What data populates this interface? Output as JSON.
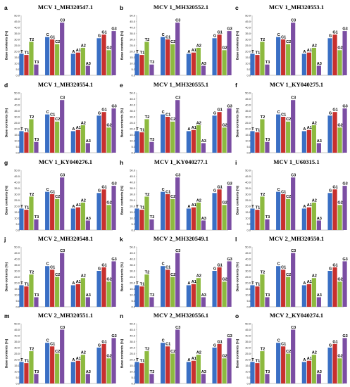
{
  "colors": {
    "T": "#3a6fc4",
    "T1": "#c8302e",
    "T2": "#8dba3f",
    "T3": "#7b4ea3"
  },
  "chart_data": [
    {
      "type": "bar",
      "panel_letter": "a",
      "title": "MCV 1_MH320547.1",
      "ylabel": "Base contents (%)",
      "ylim": [
        0,
        50
      ],
      "tick_labels": [
        "0.0",
        "5.0",
        "10.0",
        "15.0",
        "20.0",
        "25.0",
        "30.0",
        "35.0",
        "40.0",
        "45.0",
        "50.0"
      ],
      "categories": [
        "T",
        "C",
        "A",
        "G"
      ],
      "bar_labels": [
        [
          "T",
          "T1",
          "T2",
          "T3"
        ],
        [
          "C",
          "C1",
          "C2",
          "C3"
        ],
        [
          "A",
          "A1",
          "A2",
          "A3"
        ],
        [
          "G",
          "G1",
          "G2",
          "G3"
        ]
      ],
      "series": [
        {
          "values": [
            18,
            32,
            18,
            31
          ]
        },
        {
          "values": [
            17,
            30,
            19,
            34
          ]
        },
        {
          "values": [
            28,
            26,
            23,
            21
          ]
        },
        {
          "values": [
            9,
            44,
            8,
            37
          ]
        }
      ]
    },
    {
      "type": "bar",
      "panel_letter": "b",
      "title": "MCV 1_MH320552.1",
      "ylabel": "Base contents (%)",
      "ylim": [
        0,
        50
      ],
      "tick_labels": [
        "0.0",
        "5.0",
        "10.0",
        "15.0",
        "20.0",
        "25.0",
        "30.0",
        "35.0",
        "40.0",
        "45.0",
        "50.0"
      ],
      "categories": [
        "T",
        "C",
        "A",
        "G"
      ],
      "bar_labels": [
        [
          "T",
          "T1",
          "T2",
          "T3"
        ],
        [
          "C",
          "C1",
          "C2",
          "C3"
        ],
        [
          "A",
          "A1",
          "A2",
          "A3"
        ],
        [
          "G",
          "G1",
          "G2",
          "G3"
        ]
      ],
      "series": [
        {
          "values": [
            18,
            32,
            18,
            31
          ]
        },
        {
          "values": [
            17,
            30,
            19,
            34
          ]
        },
        {
          "values": [
            28,
            26,
            23,
            21
          ]
        },
        {
          "values": [
            9,
            44,
            8,
            37
          ]
        }
      ]
    },
    {
      "type": "bar",
      "panel_letter": "c",
      "title": "MCV 1_MH320553.1",
      "ylabel": "Base contents (%)",
      "ylim": [
        0,
        50
      ],
      "tick_labels": [
        "0.0",
        "5.0",
        "10.0",
        "15.0",
        "20.0",
        "25.0",
        "30.0",
        "35.0",
        "40.0",
        "45.0",
        "50.0"
      ],
      "categories": [
        "T",
        "C",
        "A",
        "G"
      ],
      "bar_labels": [
        [
          "T",
          "T1",
          "T2",
          "T3"
        ],
        [
          "C",
          "C1",
          "C2",
          "C3"
        ],
        [
          "A",
          "A1",
          "A2",
          "A3"
        ],
        [
          "G",
          "G1",
          "G2",
          "G3"
        ]
      ],
      "series": [
        {
          "values": [
            18,
            32,
            18,
            31
          ]
        },
        {
          "values": [
            17,
            30,
            19,
            34
          ]
        },
        {
          "values": [
            28,
            26,
            23,
            21
          ]
        },
        {
          "values": [
            9,
            44,
            8,
            37
          ]
        }
      ]
    },
    {
      "type": "bar",
      "panel_letter": "d",
      "title": "MCV 1_MH320554.1",
      "ylabel": "Base contents (%)",
      "ylim": [
        0,
        50
      ],
      "tick_labels": [
        "0.0",
        "5.0",
        "10.0",
        "15.0",
        "20.0",
        "25.0",
        "30.0",
        "35.0",
        "40.0",
        "45.0",
        "50.0"
      ],
      "categories": [
        "T",
        "C",
        "A",
        "G"
      ],
      "bar_labels": [
        [
          "T",
          "T1",
          "T2",
          "T3"
        ],
        [
          "C",
          "C1",
          "C2",
          "C3"
        ],
        [
          "A",
          "A1",
          "A2",
          "A3"
        ],
        [
          "G",
          "G1",
          "G2",
          "G3"
        ]
      ],
      "series": [
        {
          "values": [
            18,
            32,
            18,
            31
          ]
        },
        {
          "values": [
            17,
            30,
            19,
            34
          ]
        },
        {
          "values": [
            28,
            26,
            23,
            21
          ]
        },
        {
          "values": [
            9,
            44,
            8,
            37
          ]
        }
      ]
    },
    {
      "type": "bar",
      "panel_letter": "e",
      "title": "MCV 1_MH320555.1",
      "ylabel": "Base contents (%)",
      "ylim": [
        0,
        50
      ],
      "tick_labels": [
        "0.0",
        "5.0",
        "10.0",
        "15.0",
        "20.0",
        "25.0",
        "30.0",
        "35.0",
        "40.0",
        "45.0",
        "50.0"
      ],
      "categories": [
        "T",
        "C",
        "A",
        "G"
      ],
      "bar_labels": [
        [
          "T",
          "T1",
          "T2",
          "T3"
        ],
        [
          "C",
          "C1",
          "C2",
          "C3"
        ],
        [
          "A",
          "A1",
          "A2",
          "A3"
        ],
        [
          "G",
          "G1",
          "G2",
          "G3"
        ]
      ],
      "series": [
        {
          "values": [
            18,
            32,
            18,
            31
          ]
        },
        {
          "values": [
            17,
            30,
            19,
            34
          ]
        },
        {
          "values": [
            28,
            26,
            23,
            21
          ]
        },
        {
          "values": [
            9,
            44,
            8,
            37
          ]
        }
      ]
    },
    {
      "type": "bar",
      "panel_letter": "f",
      "title": "MCV 1_KY040275.1",
      "ylabel": "Base contents (%)",
      "ylim": [
        0,
        50
      ],
      "tick_labels": [
        "0.0",
        "5.0",
        "10.0",
        "15.0",
        "20.0",
        "25.0",
        "30.0",
        "35.0",
        "40.0",
        "45.0",
        "50.0"
      ],
      "categories": [
        "T",
        "C",
        "A",
        "G"
      ],
      "bar_labels": [
        [
          "T",
          "T1",
          "T2",
          "T3"
        ],
        [
          "C",
          "C1",
          "C2",
          "C3"
        ],
        [
          "A",
          "A1",
          "A2",
          "A3"
        ],
        [
          "G",
          "G1",
          "G2",
          "G3"
        ]
      ],
      "series": [
        {
          "values": [
            18,
            32,
            18,
            31
          ]
        },
        {
          "values": [
            17,
            30,
            19,
            34
          ]
        },
        {
          "values": [
            28,
            26,
            23,
            21
          ]
        },
        {
          "values": [
            9,
            44,
            8,
            37
          ]
        }
      ]
    },
    {
      "type": "bar",
      "panel_letter": "g",
      "title": "MCV 1_KY040276.1",
      "ylabel": "Base contents (%)",
      "ylim": [
        0,
        50
      ],
      "tick_labels": [
        "0.0",
        "5.0",
        "10.0",
        "15.0",
        "20.0",
        "25.0",
        "30.0",
        "35.0",
        "40.0",
        "45.0",
        "50.0"
      ],
      "categories": [
        "T",
        "C",
        "A",
        "G"
      ],
      "bar_labels": [
        [
          "T",
          "T1",
          "T2",
          "T3"
        ],
        [
          "C",
          "C1",
          "C2",
          "C3"
        ],
        [
          "A",
          "A1",
          "A2",
          "A3"
        ],
        [
          "G",
          "G1",
          "G2",
          "G3"
        ]
      ],
      "series": [
        {
          "values": [
            18,
            32,
            18,
            31
          ]
        },
        {
          "values": [
            17,
            30,
            19,
            34
          ]
        },
        {
          "values": [
            28,
            26,
            23,
            21
          ]
        },
        {
          "values": [
            9,
            44,
            8,
            37
          ]
        }
      ]
    },
    {
      "type": "bar",
      "panel_letter": "h",
      "title": "MCV 1_KY040277.1",
      "ylabel": "Base contents (%)",
      "ylim": [
        0,
        50
      ],
      "tick_labels": [
        "0.0",
        "5.0",
        "10.0",
        "15.0",
        "20.0",
        "25.0",
        "30.0",
        "35.0",
        "40.0",
        "45.0",
        "50.0"
      ],
      "categories": [
        "T",
        "C",
        "A",
        "G"
      ],
      "bar_labels": [
        [
          "T",
          "T1",
          "T2",
          "T3"
        ],
        [
          "C",
          "C1",
          "C2",
          "C3"
        ],
        [
          "A",
          "A1",
          "A2",
          "A3"
        ],
        [
          "G",
          "G1",
          "G2",
          "G3"
        ]
      ],
      "series": [
        {
          "values": [
            18,
            32,
            18,
            31
          ]
        },
        {
          "values": [
            17,
            30,
            19,
            34
          ]
        },
        {
          "values": [
            28,
            26,
            23,
            21
          ]
        },
        {
          "values": [
            9,
            44,
            8,
            37
          ]
        }
      ]
    },
    {
      "type": "bar",
      "panel_letter": "i",
      "title": "MCV 1_U60315.1",
      "ylabel": "Base contents (%)",
      "ylim": [
        0,
        50
      ],
      "tick_labels": [
        "0.0",
        "5.0",
        "10.0",
        "15.0",
        "20.0",
        "25.0",
        "30.0",
        "35.0",
        "40.0",
        "45.0",
        "50.0"
      ],
      "categories": [
        "T",
        "C",
        "A",
        "G"
      ],
      "bar_labels": [
        [
          "T",
          "T1",
          "T2",
          "T3"
        ],
        [
          "C",
          "C1",
          "C2",
          "C3"
        ],
        [
          "A",
          "A1",
          "A2",
          "A3"
        ],
        [
          "G",
          "G1",
          "G2",
          "G3"
        ]
      ],
      "series": [
        {
          "values": [
            18,
            32,
            18,
            31
          ]
        },
        {
          "values": [
            17,
            30,
            19,
            34
          ]
        },
        {
          "values": [
            28,
            26,
            23,
            21
          ]
        },
        {
          "values": [
            9,
            44,
            8,
            37
          ]
        }
      ]
    },
    {
      "type": "bar",
      "panel_letter": "j",
      "title": "MCV 2_MH320548.1",
      "ylabel": "Base contents (%)",
      "ylim": [
        0,
        50
      ],
      "tick_labels": [
        "0.0",
        "5.0",
        "10.0",
        "15.0",
        "20.0",
        "25.0",
        "30.0",
        "35.0",
        "40.0",
        "45.0",
        "50.0"
      ],
      "categories": [
        "T",
        "C",
        "A",
        "G"
      ],
      "bar_labels": [
        [
          "T",
          "T1",
          "T2",
          "T3"
        ],
        [
          "C",
          "C1",
          "C2",
          "C3"
        ],
        [
          "A",
          "A1",
          "A2",
          "A3"
        ],
        [
          "G",
          "G1",
          "G2",
          "G3"
        ]
      ],
      "series": [
        {
          "values": [
            18,
            34,
            18,
            30
          ]
        },
        {
          "values": [
            17,
            31,
            19,
            33
          ]
        },
        {
          "values": [
            27,
            25,
            24,
            21
          ]
        },
        {
          "values": [
            8,
            45,
            8,
            38
          ]
        }
      ]
    },
    {
      "type": "bar",
      "panel_letter": "k",
      "title": "MCV 2_MH320549.1",
      "ylabel": "Base contents (%)",
      "ylim": [
        0,
        50
      ],
      "tick_labels": [
        "0.0",
        "5.0",
        "10.0",
        "15.0",
        "20.0",
        "25.0",
        "30.0",
        "35.0",
        "40.0",
        "45.0",
        "50.0"
      ],
      "categories": [
        "T",
        "C",
        "A",
        "G"
      ],
      "bar_labels": [
        [
          "T",
          "T1",
          "T2",
          "T3"
        ],
        [
          "C",
          "C1",
          "C2",
          "C3"
        ],
        [
          "A",
          "A1",
          "A2",
          "A3"
        ],
        [
          "G",
          "G1",
          "G2",
          "G3"
        ]
      ],
      "series": [
        {
          "values": [
            18,
            34,
            18,
            30
          ]
        },
        {
          "values": [
            17,
            31,
            19,
            33
          ]
        },
        {
          "values": [
            27,
            25,
            24,
            21
          ]
        },
        {
          "values": [
            8,
            45,
            8,
            38
          ]
        }
      ]
    },
    {
      "type": "bar",
      "panel_letter": "l",
      "title": "MCV 2_MH320550.1",
      "ylabel": "Base contents (%)",
      "ylim": [
        0,
        50
      ],
      "tick_labels": [
        "0.0",
        "5.0",
        "10.0",
        "15.0",
        "20.0",
        "25.0",
        "30.0",
        "35.0",
        "40.0",
        "45.0",
        "50.0"
      ],
      "categories": [
        "T",
        "C",
        "A",
        "G"
      ],
      "bar_labels": [
        [
          "T",
          "T1",
          "T2",
          "T3"
        ],
        [
          "C",
          "C1",
          "C2",
          "C3"
        ],
        [
          "A",
          "A1",
          "A2",
          "A3"
        ],
        [
          "G",
          "G1",
          "G2",
          "G3"
        ]
      ],
      "series": [
        {
          "values": [
            18,
            34,
            18,
            30
          ]
        },
        {
          "values": [
            17,
            31,
            19,
            33
          ]
        },
        {
          "values": [
            27,
            25,
            24,
            21
          ]
        },
        {
          "values": [
            8,
            45,
            8,
            38
          ]
        }
      ]
    },
    {
      "type": "bar",
      "panel_letter": "m",
      "title": "MCV 2_MH320551.1",
      "ylabel": "Base contents (%)",
      "ylim": [
        0,
        50
      ],
      "tick_labels": [
        "0.0",
        "5.0",
        "10.0",
        "15.0",
        "20.0",
        "25.0",
        "30.0",
        "35.0",
        "40.0",
        "45.0",
        "50.0"
      ],
      "categories": [
        "T",
        "C",
        "A",
        "G"
      ],
      "bar_labels": [
        [
          "T",
          "T1",
          "T2",
          "T3"
        ],
        [
          "C",
          "C1",
          "C2",
          "C3"
        ],
        [
          "A",
          "A1",
          "A2",
          "A3"
        ],
        [
          "G",
          "G1",
          "G2",
          "G3"
        ]
      ],
      "series": [
        {
          "values": [
            18,
            34,
            18,
            30
          ]
        },
        {
          "values": [
            17,
            31,
            19,
            33
          ]
        },
        {
          "values": [
            27,
            25,
            24,
            21
          ]
        },
        {
          "values": [
            8,
            45,
            8,
            38
          ]
        }
      ]
    },
    {
      "type": "bar",
      "panel_letter": "n",
      "title": "MCV 2_MH320556.1",
      "ylabel": "Base contents (%)",
      "ylim": [
        0,
        50
      ],
      "tick_labels": [
        "0.0",
        "5.0",
        "10.0",
        "15.0",
        "20.0",
        "25.0",
        "30.0",
        "35.0",
        "40.0",
        "45.0",
        "50.0"
      ],
      "categories": [
        "T",
        "C",
        "A",
        "G"
      ],
      "bar_labels": [
        [
          "T",
          "T1",
          "T2",
          "T3"
        ],
        [
          "C",
          "C1",
          "C2",
          "C3"
        ],
        [
          "A",
          "A1",
          "A2",
          "A3"
        ],
        [
          "G",
          "G1",
          "G2",
          "G3"
        ]
      ],
      "series": [
        {
          "values": [
            18,
            34,
            18,
            30
          ]
        },
        {
          "values": [
            17,
            31,
            19,
            33
          ]
        },
        {
          "values": [
            27,
            25,
            24,
            21
          ]
        },
        {
          "values": [
            8,
            45,
            8,
            38
          ]
        }
      ]
    },
    {
      "type": "bar",
      "panel_letter": "o",
      "title": "MCV 2_KY040274.1",
      "ylabel": "Base contents (%)",
      "ylim": [
        0,
        50
      ],
      "tick_labels": [
        "0.0",
        "5.0",
        "10.0",
        "15.0",
        "20.0",
        "25.0",
        "30.0",
        "35.0",
        "40.0",
        "45.0",
        "50.0"
      ],
      "categories": [
        "T",
        "C",
        "A",
        "G"
      ],
      "bar_labels": [
        [
          "T",
          "T1",
          "T2",
          "T3"
        ],
        [
          "C",
          "C1",
          "C2",
          "C3"
        ],
        [
          "A",
          "A1",
          "A2",
          "A3"
        ],
        [
          "G",
          "G1",
          "G2",
          "G3"
        ]
      ],
      "series": [
        {
          "values": [
            18,
            34,
            18,
            30
          ]
        },
        {
          "values": [
            17,
            31,
            19,
            33
          ]
        },
        {
          "values": [
            27,
            25,
            24,
            21
          ]
        },
        {
          "values": [
            8,
            45,
            8,
            38
          ]
        }
      ]
    }
  ]
}
